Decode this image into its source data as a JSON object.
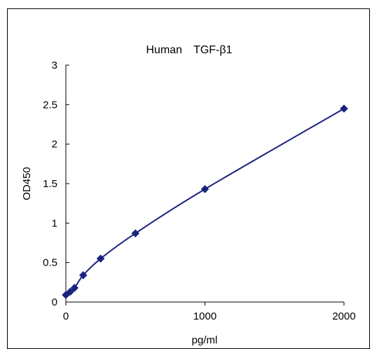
{
  "chart_data": {
    "type": "scatter",
    "title": "Human　TGF-β1",
    "xlabel": "pg/ml",
    "ylabel": "OD450",
    "xlim": [
      0,
      2000
    ],
    "ylim": [
      0,
      3
    ],
    "x_ticks": [
      0,
      1000,
      2000
    ],
    "x_tick_labels": [
      "0",
      "1000",
      "2000"
    ],
    "y_ticks": [
      0,
      0.5,
      1,
      1.5,
      2,
      2.5,
      3
    ],
    "y_tick_labels": [
      "0",
      "0.5",
      "1",
      "1.5",
      "2",
      "2.5",
      "3"
    ],
    "grid": false,
    "legend": "none",
    "series": [
      {
        "x": [
          0,
          31.25,
          62.5,
          125,
          250,
          500,
          1000,
          2000
        ],
        "y": [
          0.09,
          0.13,
          0.18,
          0.34,
          0.55,
          0.87,
          1.43,
          2.45
        ],
        "marker": "diamond",
        "color": "#1a237e",
        "fit_line": "smooth curve"
      }
    ]
  }
}
